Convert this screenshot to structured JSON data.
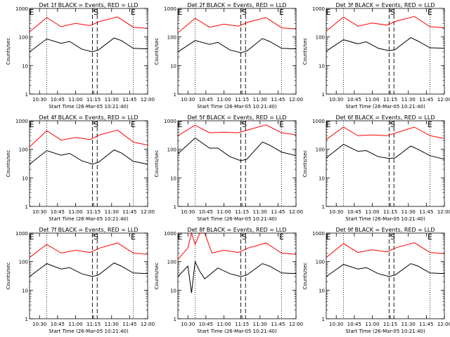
{
  "figure": {
    "ylabel": "Counts/sec",
    "xlabel": "Start Time (26-Mar-05 10:21:40)",
    "y_tick_labels": [
      "1",
      "10",
      "100",
      "1000"
    ]
  },
  "chart_data": [
    {
      "type": "line",
      "panel": "Det 1f",
      "title": "Det 1f BLACK = Events, RED = LLD",
      "xlabel": "Start Time (26-Mar-05 10:21:40)",
      "ylabel": "Counts/sec",
      "yscale": "log",
      "ylim": [
        1,
        1000
      ],
      "xlim": [
        "10:21:40",
        "12:00:00"
      ],
      "x_ticks": [
        "10:30",
        "10:45",
        "11:00",
        "11:15",
        "11:30",
        "11:45",
        "12:00"
      ],
      "markers": [
        {
          "label": "E",
          "time": "10:21:40"
        },
        {
          "label": "S",
          "time": "11:17"
        },
        {
          "label": "E",
          "time": "11:48"
        }
      ],
      "dashed_lines": [
        "11:14",
        "11:18"
      ],
      "dotted_lines": [
        "10:36",
        "11:48"
      ],
      "series": [
        {
          "name": "Events",
          "color": "#000000",
          "x": [
            "10:21:40",
            "10:36",
            "10:48",
            "10:55",
            "11:05",
            "11:14",
            "11:19",
            "11:32",
            "11:38",
            "11:48",
            "12:00"
          ],
          "y": [
            30,
            85,
            60,
            70,
            38,
            30,
            35,
            92,
            75,
            40,
            38
          ]
        },
        {
          "name": "LLD",
          "color": "#ff0000",
          "x": [
            "10:21:40",
            "10:36",
            "10:48",
            "11:00",
            "11:12",
            "11:20",
            "11:35",
            "11:48",
            "12:00"
          ],
          "y": [
            150,
            480,
            230,
            300,
            250,
            350,
            500,
            220,
            200
          ]
        }
      ]
    },
    {
      "type": "line",
      "panel": "Det 2f",
      "title": "Det 2f BLACK = Events, RED = LLD",
      "xlabel": "Start Time (26-Mar-05 10:21:40)",
      "ylabel": "Counts/sec",
      "yscale": "log",
      "ylim": [
        1,
        1000
      ],
      "xlim": [
        "10:21:40",
        "12:00:00"
      ],
      "x_ticks": [
        "10:30",
        "10:45",
        "11:00",
        "11:15",
        "11:30",
        "11:45",
        "12:00"
      ],
      "markers": [
        {
          "label": "E",
          "time": "10:21:40"
        },
        {
          "label": "S",
          "time": "11:17"
        },
        {
          "label": "E",
          "time": "11:48"
        }
      ],
      "dashed_lines": [
        "11:14",
        "11:18"
      ],
      "dotted_lines": [
        "10:36",
        "11:48"
      ],
      "series": [
        {
          "name": "Events",
          "color": "#000000",
          "x": [
            "10:21:40",
            "10:36",
            "10:48",
            "10:55",
            "11:05",
            "11:14",
            "11:19",
            "11:32",
            "11:38",
            "11:48",
            "12:00"
          ],
          "y": [
            30,
            75,
            55,
            65,
            35,
            28,
            32,
            88,
            70,
            40,
            38
          ]
        },
        {
          "name": "LLD",
          "color": "#ff0000",
          "x": [
            "10:21:40",
            "10:36",
            "10:48",
            "11:00",
            "11:12",
            "11:20",
            "11:35",
            "11:48",
            "12:00"
          ],
          "y": [
            140,
            450,
            220,
            280,
            240,
            330,
            480,
            210,
            190
          ]
        }
      ]
    },
    {
      "type": "line",
      "panel": "Det 3f",
      "title": "Det 3f BLACK = Events, RED = LLD",
      "xlabel": "Start Time (26-Mar-05 10:21:40)",
      "ylabel": "Counts/sec",
      "yscale": "log",
      "ylim": [
        1,
        1000
      ],
      "xlim": [
        "10:21:40",
        "12:00:00"
      ],
      "x_ticks": [
        "10:30",
        "10:45",
        "11:00",
        "11:15",
        "11:30",
        "11:45",
        "12:00"
      ],
      "markers": [
        {
          "label": "E",
          "time": "10:21:40"
        },
        {
          "label": "S",
          "time": "11:17"
        },
        {
          "label": "E",
          "time": "11:48"
        }
      ],
      "dashed_lines": [
        "11:14",
        "11:18"
      ],
      "dotted_lines": [
        "10:36",
        "11:48"
      ],
      "series": [
        {
          "name": "Events",
          "color": "#000000",
          "x": [
            "10:21:40",
            "10:36",
            "10:48",
            "10:55",
            "11:05",
            "11:14",
            "11:19",
            "11:32",
            "11:38",
            "11:48",
            "12:00"
          ],
          "y": [
            32,
            80,
            58,
            68,
            40,
            33,
            36,
            95,
            72,
            42,
            40
          ]
        },
        {
          "name": "LLD",
          "color": "#ff0000",
          "x": [
            "10:21:40",
            "10:36",
            "10:48",
            "11:00",
            "11:12",
            "11:20",
            "11:35",
            "11:48",
            "12:00"
          ],
          "y": [
            160,
            500,
            240,
            310,
            260,
            360,
            520,
            230,
            210
          ]
        }
      ]
    },
    {
      "type": "line",
      "panel": "Det 4f",
      "title": "Det 4f BLACK = Events, RED = LLD",
      "xlabel": "Start Time (26-Mar-05 10:21:40)",
      "ylabel": "Counts/sec",
      "yscale": "log",
      "ylim": [
        1,
        1000
      ],
      "xlim": [
        "10:21:40",
        "12:00:00"
      ],
      "x_ticks": [
        "10:30",
        "10:45",
        "11:00",
        "11:15",
        "11:30",
        "11:45",
        "12:00"
      ],
      "markers": [
        {
          "label": "E",
          "time": "10:21:40"
        },
        {
          "label": "S",
          "time": "11:17"
        },
        {
          "label": "E",
          "time": "11:48"
        }
      ],
      "dashed_lines": [
        "11:14",
        "11:18"
      ],
      "dotted_lines": [
        "10:36",
        "11:48"
      ],
      "series": [
        {
          "name": "Events",
          "color": "#000000",
          "x": [
            "10:21:40",
            "10:36",
            "10:48",
            "10:55",
            "11:05",
            "11:14",
            "11:19",
            "11:32",
            "11:38",
            "11:48",
            "12:00"
          ],
          "y": [
            30,
            90,
            62,
            72,
            40,
            30,
            35,
            95,
            75,
            38,
            30
          ]
        },
        {
          "name": "LLD",
          "color": "#ff0000",
          "x": [
            "10:21:40",
            "10:36",
            "10:48",
            "11:00",
            "11:12",
            "11:20",
            "11:35",
            "11:48",
            "12:00"
          ],
          "y": [
            120,
            450,
            210,
            260,
            220,
            320,
            470,
            180,
            140
          ]
        }
      ]
    },
    {
      "type": "line",
      "panel": "Det 5f",
      "title": "Det 5f BLACK = Events, RED = LLD",
      "xlabel": "Start Time (26-Mar-05 10:21:40)",
      "ylabel": "Counts/sec",
      "yscale": "log",
      "ylim": [
        1,
        1000
      ],
      "xlim": [
        "10:21:40",
        "12:00:00"
      ],
      "x_ticks": [
        "10:30",
        "10:45",
        "11:00",
        "11:15",
        "11:30",
        "11:45",
        "12:00"
      ],
      "markers": [
        {
          "label": "E",
          "time": "10:21:40"
        },
        {
          "label": "S",
          "time": "11:17"
        },
        {
          "label": "E",
          "time": "11:48"
        }
      ],
      "dashed_lines": [
        "11:14",
        "11:18"
      ],
      "dotted_lines": [
        "10:36",
        "11:48"
      ],
      "series": [
        {
          "name": "Events",
          "color": "#000000",
          "x": [
            "10:21:40",
            "10:36",
            "10:48",
            "10:55",
            "11:05",
            "11:14",
            "11:19",
            "11:32",
            "11:38",
            "11:48",
            "12:00"
          ],
          "y": [
            70,
            250,
            110,
            110,
            55,
            40,
            45,
            180,
            140,
            80,
            60
          ]
        },
        {
          "name": "LLD",
          "color": "#ff0000",
          "x": [
            "10:21:40",
            "10:36",
            "10:48",
            "11:00",
            "11:12",
            "11:20",
            "11:35",
            "11:48",
            "12:00"
          ],
          "y": [
            300,
            700,
            380,
            400,
            380,
            480,
            720,
            380,
            320
          ]
        }
      ]
    },
    {
      "type": "line",
      "panel": "Det 6f",
      "title": "Det 6f BLACK = Events, RED = LLD",
      "xlabel": "Start Time (26-Mar-05 10:21:40)",
      "ylabel": "Counts/sec",
      "yscale": "log",
      "ylim": [
        1,
        1000
      ],
      "xlim": [
        "10:21:40",
        "12:00:00"
      ],
      "x_ticks": [
        "10:30",
        "10:45",
        "11:00",
        "11:15",
        "11:30",
        "11:45",
        "12:00"
      ],
      "markers": [
        {
          "label": "E",
          "time": "10:21:40"
        },
        {
          "label": "S",
          "time": "11:17"
        },
        {
          "label": "E",
          "time": "11:48"
        }
      ],
      "dashed_lines": [
        "11:14",
        "11:18"
      ],
      "dotted_lines": [
        "10:36",
        "11:48"
      ],
      "series": [
        {
          "name": "Events",
          "color": "#000000",
          "x": [
            "10:21:40",
            "10:36",
            "10:48",
            "10:55",
            "11:05",
            "11:14",
            "11:19",
            "11:32",
            "11:38",
            "11:48",
            "12:00"
          ],
          "y": [
            50,
            150,
            85,
            90,
            55,
            48,
            50,
            130,
            100,
            60,
            45
          ]
        },
        {
          "name": "LLD",
          "color": "#ff0000",
          "x": [
            "10:21:40",
            "10:36",
            "10:48",
            "11:00",
            "11:12",
            "11:20",
            "11:35",
            "11:48",
            "12:00"
          ],
          "y": [
            220,
            600,
            300,
            320,
            300,
            380,
            600,
            300,
            240
          ]
        }
      ]
    },
    {
      "type": "line",
      "panel": "Det 7f",
      "title": "Det 7f BLACK = Events, RED = LLD",
      "xlabel": "Start Time (26-Mar-05 10:21:40)",
      "ylabel": "Counts/sec",
      "yscale": "log",
      "ylim": [
        1,
        1000
      ],
      "xlim": [
        "10:21:40",
        "12:00:00"
      ],
      "x_ticks": [
        "10:30",
        "10:45",
        "11:00",
        "11:15",
        "11:30",
        "11:45",
        "12:00"
      ],
      "markers": [
        {
          "label": "E",
          "time": "10:21:40"
        },
        {
          "label": "S",
          "time": "11:17"
        },
        {
          "label": "E",
          "time": "11:48"
        }
      ],
      "dashed_lines": [
        "11:14",
        "11:18"
      ],
      "dotted_lines": [
        "10:36",
        "11:48"
      ],
      "series": [
        {
          "name": "Events",
          "color": "#000000",
          "x": [
            "10:21:40",
            "10:36",
            "10:48",
            "10:55",
            "11:05",
            "11:14",
            "11:19",
            "11:32",
            "11:38",
            "11:48",
            "12:00"
          ],
          "y": [
            30,
            85,
            55,
            62,
            38,
            30,
            34,
            90,
            70,
            40,
            38
          ]
        },
        {
          "name": "LLD",
          "color": "#ff0000",
          "x": [
            "10:21:40",
            "10:36",
            "10:48",
            "11:00",
            "11:12",
            "11:20",
            "11:35",
            "11:48",
            "12:00"
          ],
          "y": [
            140,
            400,
            200,
            250,
            210,
            300,
            450,
            200,
            180
          ]
        }
      ]
    },
    {
      "type": "line",
      "panel": "Det 8f",
      "title": "Det 8f BLACK = Events, RED = LLD",
      "xlabel": "Start Time (26-Mar-05 10:21:40)",
      "ylabel": "Counts/sec",
      "yscale": "log",
      "ylim": [
        1,
        1000
      ],
      "xlim": [
        "10:21:40",
        "12:00:00"
      ],
      "x_ticks": [
        "10:30",
        "10:45",
        "11:00",
        "11:15",
        "11:30",
        "11:45",
        "12:00"
      ],
      "markers": [
        {
          "label": "E",
          "time": "10:21:40"
        },
        {
          "label": "S",
          "time": "11:17"
        },
        {
          "label": "E",
          "time": "11:48"
        }
      ],
      "dashed_lines": [
        "11:14",
        "11:18"
      ],
      "dotted_lines": [
        "10:36",
        "11:48"
      ],
      "series": [
        {
          "name": "Events",
          "color": "#000000",
          "x": [
            "10:21:40",
            "10:30",
            "10:33",
            "10:36",
            "10:40",
            "10:44",
            "10:55",
            "11:05",
            "11:14",
            "11:19",
            "11:32",
            "11:38",
            "11:48",
            "12:00"
          ],
          "y": [
            30,
            70,
            8,
            100,
            45,
            25,
            60,
            38,
            30,
            34,
            85,
            70,
            40,
            38
          ]
        },
        {
          "name": "LLD",
          "color": "#ff0000",
          "x": [
            "10:21:40",
            "10:30",
            "10:33",
            "10:36",
            "10:40",
            "10:44",
            "10:50",
            "11:00",
            "11:12",
            "11:20",
            "11:35",
            "11:48",
            "12:00"
          ],
          "y": [
            120,
            300,
            1000,
            400,
            1000,
            1000,
            200,
            250,
            210,
            300,
            450,
            200,
            180
          ]
        }
      ]
    },
    {
      "type": "line",
      "panel": "Det 9f",
      "title": "Det 9f BLACK = Events, RED = LLD",
      "xlabel": "Start Time (26-Mar-05 10:21:40)",
      "ylabel": "Counts/sec",
      "yscale": "log",
      "ylim": [
        1,
        1000
      ],
      "xlim": [
        "10:21:40",
        "12:00:00"
      ],
      "x_ticks": [
        "10:30",
        "10:45",
        "11:00",
        "11:15",
        "11:30",
        "11:45",
        "12:00"
      ],
      "markers": [
        {
          "label": "E",
          "time": "10:21:40"
        },
        {
          "label": "S",
          "time": "11:17"
        },
        {
          "label": "E",
          "time": "11:48"
        }
      ],
      "dashed_lines": [
        "11:14",
        "11:18"
      ],
      "dotted_lines": [
        "10:36",
        "11:48"
      ],
      "series": [
        {
          "name": "Events",
          "color": "#000000",
          "x": [
            "10:21:40",
            "10:36",
            "10:48",
            "10:55",
            "11:05",
            "11:14",
            "11:19",
            "11:32",
            "11:38",
            "11:48",
            "12:00"
          ],
          "y": [
            30,
            80,
            55,
            62,
            38,
            30,
            34,
            85,
            70,
            40,
            38
          ]
        },
        {
          "name": "LLD",
          "color": "#ff0000",
          "x": [
            "10:21:40",
            "10:36",
            "10:48",
            "11:00",
            "11:12",
            "11:20",
            "11:35",
            "11:48",
            "12:00"
          ],
          "y": [
            140,
            430,
            210,
            260,
            220,
            310,
            460,
            210,
            190
          ]
        }
      ]
    }
  ]
}
